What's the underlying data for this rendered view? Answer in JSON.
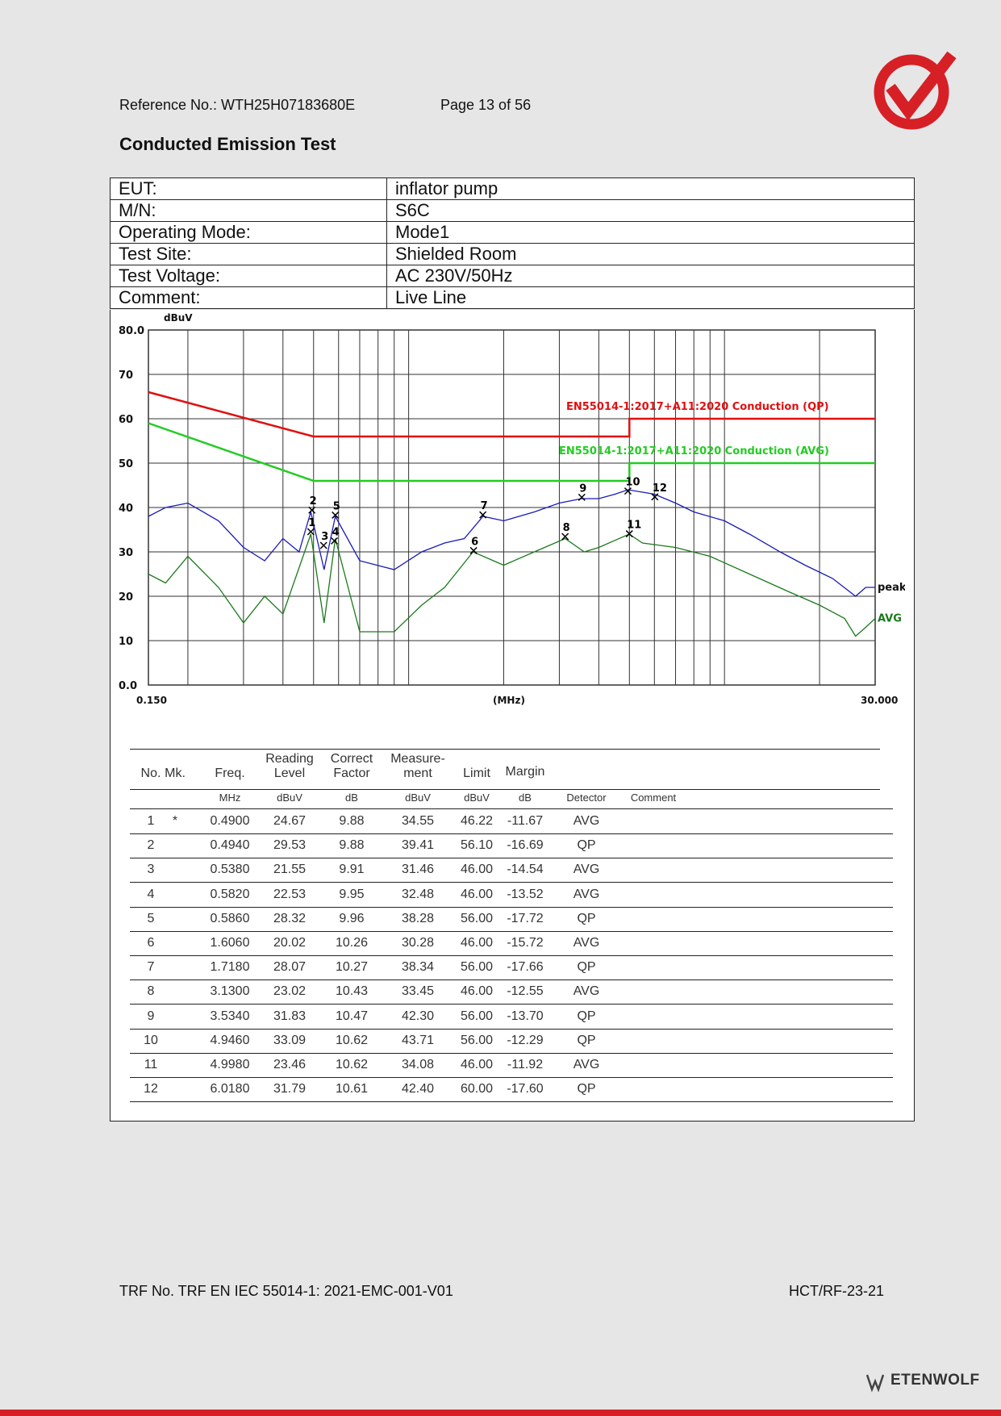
{
  "header": {
    "reference": "Reference No.: WTH25H07183680E",
    "page": "Page 13 of 56"
  },
  "section_title": "Conducted Emission Test",
  "info_rows": [
    {
      "label": "EUT:",
      "value": "inflator pump"
    },
    {
      "label": "M/N:",
      "value": "S6C"
    },
    {
      "label": "Operating Mode:",
      "value": "Mode1"
    },
    {
      "label": "Test Site:",
      "value": "Shielded Room"
    },
    {
      "label": "Test Voltage:",
      "value": "AC 230V/50Hz"
    },
    {
      "label": "Comment:",
      "value": "Live Line"
    }
  ],
  "chart_data": {
    "type": "line",
    "y_unit": "dBuV",
    "x_unit": "(MHz)",
    "x_scale": "log",
    "xlim": [
      0.15,
      30
    ],
    "ylim": [
      0,
      80
    ],
    "x_tick_labels": [
      "0.150",
      "30.000"
    ],
    "y_tick_labels": [
      "80.0",
      "70",
      "60",
      "50",
      "40",
      "30",
      "20",
      "10",
      "0.0"
    ],
    "grid": true,
    "limit_lines": [
      {
        "name": "EN55014-1:2017+A11:2020 Conduction (QP)",
        "color": "#e01010",
        "points": [
          [
            0.15,
            66
          ],
          [
            0.5,
            56
          ],
          [
            5,
            56
          ],
          [
            5,
            60
          ],
          [
            30,
            60
          ]
        ]
      },
      {
        "name": "EN55014-1:2017+A11:2020 Conduction (AVG)",
        "color": "#22cc22",
        "points": [
          [
            0.15,
            59
          ],
          [
            0.5,
            46
          ],
          [
            5,
            46
          ],
          [
            5,
            50
          ],
          [
            30,
            50
          ]
        ]
      }
    ],
    "series": [
      {
        "name": "peak",
        "color": "#1a1ab8",
        "points": [
          [
            0.15,
            38
          ],
          [
            0.17,
            40
          ],
          [
            0.2,
            41
          ],
          [
            0.25,
            37
          ],
          [
            0.3,
            31
          ],
          [
            0.35,
            28
          ],
          [
            0.4,
            33
          ],
          [
            0.45,
            30
          ],
          [
            0.49,
            39
          ],
          [
            0.54,
            26
          ],
          [
            0.586,
            38
          ],
          [
            0.7,
            28
          ],
          [
            0.9,
            26
          ],
          [
            1.1,
            30
          ],
          [
            1.3,
            32
          ],
          [
            1.5,
            33
          ],
          [
            1.72,
            38
          ],
          [
            2.0,
            37
          ],
          [
            2.5,
            39
          ],
          [
            3.0,
            41
          ],
          [
            3.53,
            42
          ],
          [
            4.0,
            42
          ],
          [
            4.5,
            43
          ],
          [
            4.95,
            44
          ],
          [
            6.0,
            43
          ],
          [
            7.0,
            41
          ],
          [
            8.0,
            39
          ],
          [
            10,
            37
          ],
          [
            12,
            34
          ],
          [
            15,
            30
          ],
          [
            18,
            27
          ],
          [
            22,
            24
          ],
          [
            26,
            20
          ],
          [
            28,
            22
          ],
          [
            30,
            22
          ]
        ]
      },
      {
        "name": "AVG",
        "color": "#1a7a1a",
        "points": [
          [
            0.15,
            25
          ],
          [
            0.17,
            23
          ],
          [
            0.2,
            29
          ],
          [
            0.25,
            22
          ],
          [
            0.3,
            14
          ],
          [
            0.35,
            20
          ],
          [
            0.4,
            16
          ],
          [
            0.49,
            34
          ],
          [
            0.54,
            14
          ],
          [
            0.586,
            33
          ],
          [
            0.7,
            12
          ],
          [
            0.9,
            12
          ],
          [
            1.1,
            18
          ],
          [
            1.3,
            22
          ],
          [
            1.6,
            30
          ],
          [
            2.0,
            27
          ],
          [
            2.5,
            30
          ],
          [
            3.13,
            33
          ],
          [
            3.6,
            30
          ],
          [
            4.0,
            31
          ],
          [
            4.99,
            34
          ],
          [
            5.5,
            32
          ],
          [
            7.0,
            31
          ],
          [
            9.0,
            29
          ],
          [
            12,
            25
          ],
          [
            16,
            21
          ],
          [
            20,
            18
          ],
          [
            24,
            15
          ],
          [
            26,
            11
          ],
          [
            28,
            13
          ],
          [
            30,
            15
          ]
        ]
      }
    ],
    "markers": [
      {
        "no": "1",
        "x": 0.49,
        "y": 34.55
      },
      {
        "no": "2",
        "x": 0.494,
        "y": 39.41
      },
      {
        "no": "3",
        "x": 0.538,
        "y": 31.46
      },
      {
        "no": "4",
        "x": 0.582,
        "y": 32.48
      },
      {
        "no": "5",
        "x": 0.586,
        "y": 38.28
      },
      {
        "no": "6",
        "x": 1.606,
        "y": 30.28
      },
      {
        "no": "7",
        "x": 1.718,
        "y": 38.34
      },
      {
        "no": "8",
        "x": 3.13,
        "y": 33.45
      },
      {
        "no": "9",
        "x": 3.534,
        "y": 42.3
      },
      {
        "no": "10",
        "x": 4.946,
        "y": 43.71
      },
      {
        "no": "11",
        "x": 4.998,
        "y": 34.08
      },
      {
        "no": "12",
        "x": 6.018,
        "y": 42.4
      }
    ]
  },
  "results": {
    "headers": {
      "no": "No.",
      "mk": "Mk.",
      "freq": "Freq.",
      "reading": "Reading Level",
      "correct": "Correct Factor",
      "measure": "Measure- ment",
      "limit": "Limit",
      "margin": "Margin"
    },
    "units": {
      "freq": "MHz",
      "reading": "dBuV",
      "correct": "dB",
      "measure": "dBuV",
      "limit": "dBuV",
      "margin": "dB",
      "detector": "Detector",
      "comment": "Comment"
    },
    "rows": [
      {
        "no": "1",
        "mk": "*",
        "freq": "0.4900",
        "reading": "24.67",
        "correct": "9.88",
        "measure": "34.55",
        "limit": "46.22",
        "margin": "-11.67",
        "detector": "AVG"
      },
      {
        "no": "2",
        "mk": "",
        "freq": "0.4940",
        "reading": "29.53",
        "correct": "9.88",
        "measure": "39.41",
        "limit": "56.10",
        "margin": "-16.69",
        "detector": "QP"
      },
      {
        "no": "3",
        "mk": "",
        "freq": "0.5380",
        "reading": "21.55",
        "correct": "9.91",
        "measure": "31.46",
        "limit": "46.00",
        "margin": "-14.54",
        "detector": "AVG"
      },
      {
        "no": "4",
        "mk": "",
        "freq": "0.5820",
        "reading": "22.53",
        "correct": "9.95",
        "measure": "32.48",
        "limit": "46.00",
        "margin": "-13.52",
        "detector": "AVG"
      },
      {
        "no": "5",
        "mk": "",
        "freq": "0.5860",
        "reading": "28.32",
        "correct": "9.96",
        "measure": "38.28",
        "limit": "56.00",
        "margin": "-17.72",
        "detector": "QP"
      },
      {
        "no": "6",
        "mk": "",
        "freq": "1.6060",
        "reading": "20.02",
        "correct": "10.26",
        "measure": "30.28",
        "limit": "46.00",
        "margin": "-15.72",
        "detector": "AVG"
      },
      {
        "no": "7",
        "mk": "",
        "freq": "1.7180",
        "reading": "28.07",
        "correct": "10.27",
        "measure": "38.34",
        "limit": "56.00",
        "margin": "-17.66",
        "detector": "QP"
      },
      {
        "no": "8",
        "mk": "",
        "freq": "3.1300",
        "reading": "23.02",
        "correct": "10.43",
        "measure": "33.45",
        "limit": "46.00",
        "margin": "-12.55",
        "detector": "AVG"
      },
      {
        "no": "9",
        "mk": "",
        "freq": "3.5340",
        "reading": "31.83",
        "correct": "10.47",
        "measure": "42.30",
        "limit": "56.00",
        "margin": "-13.70",
        "detector": "QP"
      },
      {
        "no": "10",
        "mk": "",
        "freq": "4.9460",
        "reading": "33.09",
        "correct": "10.62",
        "measure": "43.71",
        "limit": "56.00",
        "margin": "-12.29",
        "detector": "QP"
      },
      {
        "no": "11",
        "mk": "",
        "freq": "4.9980",
        "reading": "23.46",
        "correct": "10.62",
        "measure": "34.08",
        "limit": "46.00",
        "margin": "-11.92",
        "detector": "AVG"
      },
      {
        "no": "12",
        "mk": "",
        "freq": "6.0180",
        "reading": "31.79",
        "correct": "10.61",
        "measure": "42.40",
        "limit": "60.00",
        "margin": "-17.60",
        "detector": "QP"
      }
    ]
  },
  "footer": {
    "trf": "TRF No. TRF EN IEC 55014-1: 2021-EMC-001-V01",
    "code": "HCT/RF-23-21"
  },
  "brand": {
    "name": "ETENWOLF",
    "accent": "#d71f26"
  }
}
